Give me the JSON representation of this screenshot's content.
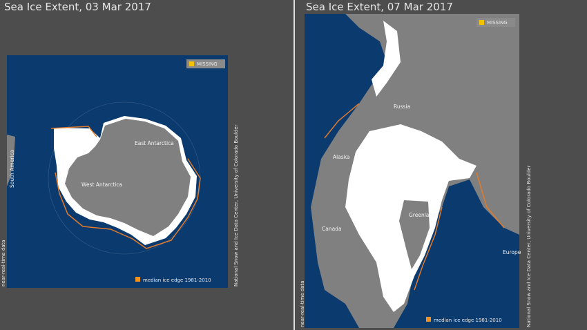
{
  "panels": [
    {
      "title": "Sea Ice Extent, 03 Mar 2017",
      "missing_legend": "MISSING",
      "median_legend": "median ice edge 1981-2010",
      "credit": "National Snow and Ice Data Center, University of Colorado Boulder",
      "source_note": "near-real-time data",
      "labels": [
        "East Antarctica",
        "West Antarctica",
        "South America"
      ]
    },
    {
      "title": "Sea Ice Extent, 07 Mar 2017",
      "missing_legend": "MISSING",
      "median_legend": "median ice edge 1981-2010",
      "credit": "National Snow and Ice Data Center, University of Colorado Boulder",
      "source_note": "near-real-time data",
      "labels": [
        "Russia",
        "Alaska",
        "Canada",
        "Greenland",
        "Europe"
      ]
    }
  ]
}
